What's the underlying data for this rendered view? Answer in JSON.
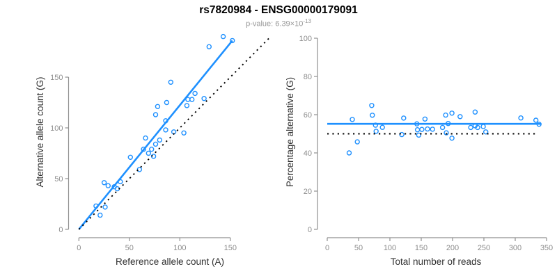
{
  "header": {
    "title": "rs7820984 - ENSG00000179091",
    "pvalue_label": "p-value: 6.39×10",
    "pvalue_exponent": "-13",
    "pvalue_full": "p-value: 6.39×10^-13"
  },
  "colors": {
    "accent_blue": "#1E90FF",
    "line_black": "#000000",
    "axis_gray": "#909090",
    "tick_label_gray": "#8c8c8c",
    "axis_title_color": "#303030",
    "background": "#ffffff"
  },
  "chart_data": [
    {
      "type": "scatter",
      "name": "allele-count-scatter",
      "xlabel": "Reference allele count (A)",
      "ylabel": "Alternative allele count (G)",
      "xlim": [
        0,
        190
      ],
      "ylim": [
        0,
        195
      ],
      "xticks": [
        0,
        50,
        100,
        150
      ],
      "yticks": [
        0,
        50,
        100,
        150
      ],
      "grid": false,
      "legend": "none",
      "points": [
        [
          17,
          23
        ],
        [
          21,
          14
        ],
        [
          26,
          22
        ],
        [
          25,
          46
        ],
        [
          29,
          43
        ],
        [
          35,
          42
        ],
        [
          38,
          40
        ],
        [
          41,
          47
        ],
        [
          51,
          71
        ],
        [
          60,
          59
        ],
        [
          64,
          79
        ],
        [
          66,
          90
        ],
        [
          69,
          75
        ],
        [
          72,
          79
        ],
        [
          74,
          72
        ],
        [
          76,
          84
        ],
        [
          76,
          113
        ],
        [
          78,
          121
        ],
        [
          80,
          88
        ],
        [
          86,
          98
        ],
        [
          86,
          107
        ],
        [
          87,
          125
        ],
        [
          91,
          145
        ],
        [
          94,
          96
        ],
        [
          104,
          95
        ],
        [
          107,
          122
        ],
        [
          108,
          128
        ],
        [
          112,
          128
        ],
        [
          115,
          134
        ],
        [
          124,
          129
        ],
        [
          129,
          180
        ],
        [
          143,
          190
        ],
        [
          152,
          186
        ]
      ],
      "lines": [
        {
          "name": "regression-line",
          "style": "solid",
          "color": "#1E90FF",
          "x1": 0,
          "y1": 0,
          "x2": 152,
          "y2": 186
        },
        {
          "name": "identity-line",
          "style": "dotted",
          "color": "#000000",
          "x1": 0,
          "y1": 0,
          "x2": 189,
          "y2": 189
        }
      ]
    },
    {
      "type": "scatter",
      "name": "percentage-vs-reads-scatter",
      "xlabel": "Total number of reads",
      "ylabel": "Percentage alternative (G)",
      "xlim": [
        0,
        360
      ],
      "ylim": [
        0,
        100
      ],
      "xticks": [
        0,
        50,
        100,
        150,
        200,
        250,
        300,
        350
      ],
      "yticks": [
        0,
        20,
        40,
        60,
        80,
        100
      ],
      "grid": false,
      "legend": "none",
      "points": [
        [
          40,
          57.5
        ],
        [
          35,
          40
        ],
        [
          48,
          45.8
        ],
        [
          71,
          64.8
        ],
        [
          72,
          59.7
        ],
        [
          77,
          54.5
        ],
        [
          78,
          51.3
        ],
        [
          88,
          53.4
        ],
        [
          122,
          58.2
        ],
        [
          119,
          49.6
        ],
        [
          143,
          55.2
        ],
        [
          156,
          57.7
        ],
        [
          144,
          52.1
        ],
        [
          151,
          52.3
        ],
        [
          146,
          49.3
        ],
        [
          160,
          52.5
        ],
        [
          189,
          59.8
        ],
        [
          199,
          60.8
        ],
        [
          168,
          52.4
        ],
        [
          184,
          53.3
        ],
        [
          193,
          55.4
        ],
        [
          212,
          59
        ],
        [
          236,
          61.4
        ],
        [
          190,
          50.5
        ],
        [
          199,
          47.7
        ],
        [
          229,
          53.3
        ],
        [
          236,
          54.2
        ],
        [
          240,
          53.3
        ],
        [
          249,
          53.8
        ],
        [
          253,
          51
        ],
        [
          309,
          58.3
        ],
        [
          333,
          57.1
        ],
        [
          338,
          55
        ]
      ],
      "lines": [
        {
          "name": "mean-percentage-line",
          "style": "solid",
          "color": "#1E90FF",
          "x1": 0,
          "y1": 55.2,
          "x2": 341,
          "y2": 55.2
        },
        {
          "name": "expected-50-percent-line",
          "style": "dotted",
          "color": "#000000",
          "x1": 0,
          "y1": 50,
          "x2": 335,
          "y2": 50
        }
      ]
    }
  ]
}
